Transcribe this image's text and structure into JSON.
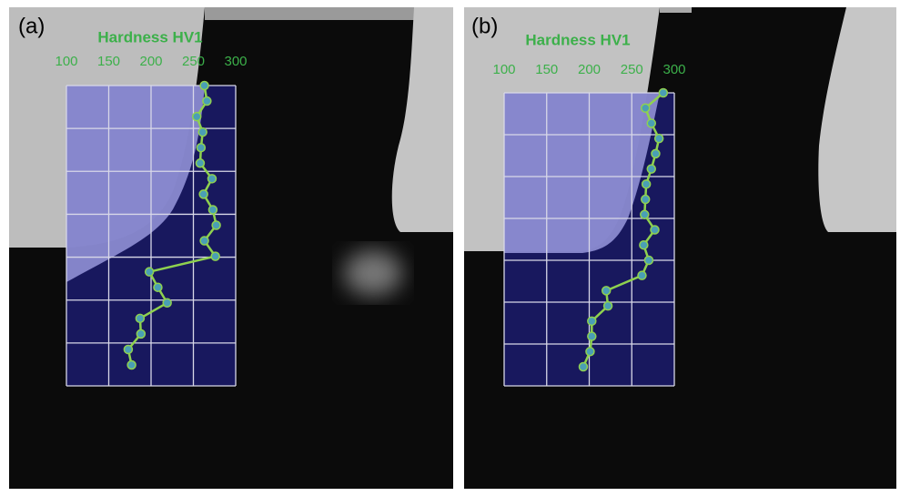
{
  "chart_data": [
    {
      "type": "line",
      "orientation": "horizontal",
      "panel_label": "(a)",
      "title": "Hardness HV1",
      "categories": [
        null,
        null,
        null,
        null,
        null,
        null,
        null,
        null,
        null,
        null,
        null,
        null,
        null,
        null,
        null,
        null,
        null,
        null,
        null
      ],
      "values": [
        263,
        266,
        254,
        261,
        259,
        258,
        272,
        262,
        273,
        277,
        263,
        276,
        198,
        208,
        219,
        187,
        188,
        173,
        177
      ],
      "xlim": [
        100,
        300
      ],
      "xticks": [
        100,
        150,
        200,
        250,
        300
      ],
      "grid": true,
      "color": "#8fd14f",
      "marker_color": "#4a9fb5"
    },
    {
      "type": "line",
      "orientation": "horizontal",
      "panel_label": "(b)",
      "title": "Hardness HV1",
      "categories": [
        null,
        null,
        null,
        null,
        null,
        null,
        null,
        null,
        null,
        null,
        null,
        null,
        null,
        null,
        null,
        null,
        null,
        null,
        null
      ],
      "values": [
        287,
        266,
        273,
        282,
        278,
        273,
        267,
        266,
        265,
        277,
        264,
        270,
        262,
        220,
        222,
        203,
        203,
        201,
        193
      ],
      "xlim": [
        100,
        300
      ],
      "xticks": [
        100,
        150,
        200,
        250,
        300
      ],
      "grid": true,
      "color": "#8fd14f",
      "marker_color": "#4a9fb5"
    }
  ]
}
